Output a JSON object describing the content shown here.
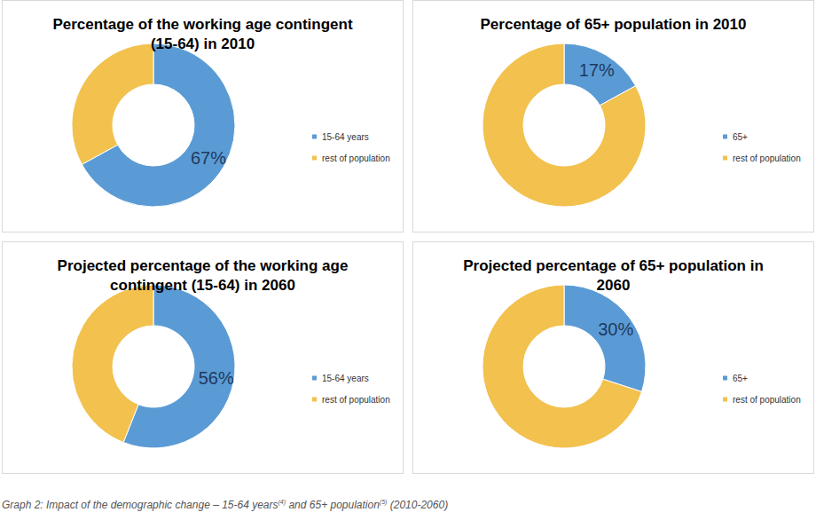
{
  "chart_data": [
    {
      "type": "pie",
      "title": "Percentage of the working age contingent\n(15-64) in 2010",
      "categories": [
        "15-64 years",
        "rest of population"
      ],
      "values": [
        67,
        33
      ],
      "value_labels": [
        "67%",
        null
      ],
      "colors": [
        "#5b9bd5",
        "#f2c14e"
      ],
      "data_labels": true,
      "legend": "right"
    },
    {
      "type": "pie",
      "title": "Percentage of 65+ population in 2010",
      "categories": [
        "65+",
        "rest of population"
      ],
      "values": [
        17,
        83
      ],
      "value_labels": [
        "17%",
        null
      ],
      "colors": [
        "#5b9bd5",
        "#f2c14e"
      ],
      "data_labels": true,
      "legend": "right"
    },
    {
      "type": "pie",
      "title": "Projected percentage of the working age\ncontingent (15-64) in 2060",
      "categories": [
        "15-64 years",
        "rest of population"
      ],
      "values": [
        56,
        44
      ],
      "value_labels": [
        "56%",
        null
      ],
      "colors": [
        "#5b9bd5",
        "#f2c14e"
      ],
      "data_labels": true,
      "legend": "right"
    },
    {
      "type": "pie",
      "title": "Projected percentage of 65+ population in\n2060",
      "categories": [
        "65+",
        "rest of population"
      ],
      "values": [
        30,
        70
      ],
      "value_labels": [
        "30%",
        null
      ],
      "colors": [
        "#5b9bd5",
        "#f2c14e"
      ],
      "data_labels": true,
      "legend": "right"
    }
  ],
  "caption": [
    {
      "text": "Graph 2: Impact of the demographic change – 15-64 years"
    },
    {
      "text": "(4)",
      "sup": true
    },
    {
      "text": " and 65+ population"
    },
    {
      "text": "(5)",
      "sup": true
    },
    {
      "text": " (2010-2060)"
    }
  ]
}
